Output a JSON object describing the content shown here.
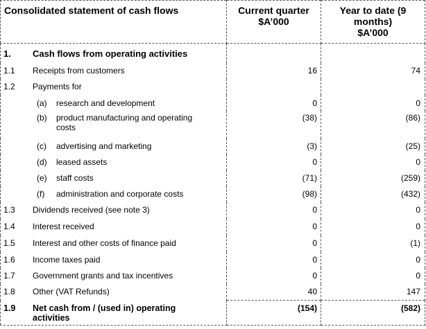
{
  "header": {
    "statement_title": "Consolidated statement of cash flows",
    "col_current_quarter": [
      "Current quarter",
      "$A’000"
    ],
    "col_year_to_date": [
      "Year to date (9",
      "months)",
      "$A’000"
    ]
  },
  "rows": [
    {
      "id": "sec",
      "code": "1.",
      "label": "Cash flows from operating activities"
    },
    {
      "id": "1.1",
      "code": "1.1",
      "label": "Receipts from customers",
      "cq": "16",
      "ytd": "74"
    },
    {
      "id": "1.2",
      "code": "1.2",
      "label": "Payments for"
    },
    {
      "id": "1.2a",
      "letter": "(a)",
      "label": "research and development",
      "cq": "0",
      "ytd": "0"
    },
    {
      "id": "1.2b",
      "letter": "(b)",
      "label": "product manufacturing and operating costs",
      "label_line1": "product manufacturing and operating",
      "label_line2": "costs",
      "cq": "(38)",
      "ytd": "(86)"
    },
    {
      "id": "1.2c",
      "letter": "(c)",
      "label": "advertising and marketing",
      "cq": "(3)",
      "ytd": "(25)"
    },
    {
      "id": "1.2d",
      "letter": "(d)",
      "label": "leased assets",
      "cq": "0",
      "ytd": "0"
    },
    {
      "id": "1.2e",
      "letter": "(e)",
      "label": "staff costs",
      "cq": "(71)",
      "ytd": "(259)"
    },
    {
      "id": "1.2f",
      "letter": "(f)",
      "label": "administration and corporate costs",
      "cq": "(98)",
      "ytd": "(432)"
    },
    {
      "id": "1.3",
      "code": "1.3",
      "label": "Dividends received (see note 3)",
      "cq": "0",
      "ytd": "0"
    },
    {
      "id": "1.4",
      "code": "1.4",
      "label": "Interest received",
      "cq": "0",
      "ytd": "0"
    },
    {
      "id": "1.5",
      "code": "1.5",
      "label": "Interest and other costs of finance paid",
      "cq": "0",
      "ytd": "(1)"
    },
    {
      "id": "1.6",
      "code": "1.6",
      "label": "Income taxes paid",
      "cq": "0",
      "ytd": "0"
    },
    {
      "id": "1.7",
      "code": "1.7",
      "label": "Government grants and tax incentives",
      "cq": "0",
      "ytd": "0"
    },
    {
      "id": "1.8",
      "code": "1.8",
      "label": "Other (VAT Refunds)",
      "cq": "40",
      "ytd": "147"
    },
    {
      "id": "1.9",
      "code": "1.9",
      "label": "Net cash from / (used in) operating activities",
      "label_line1": "Net cash from / (used in) operating",
      "label_line2": "activities",
      "cq": "(154)",
      "ytd": "(582)"
    }
  ]
}
